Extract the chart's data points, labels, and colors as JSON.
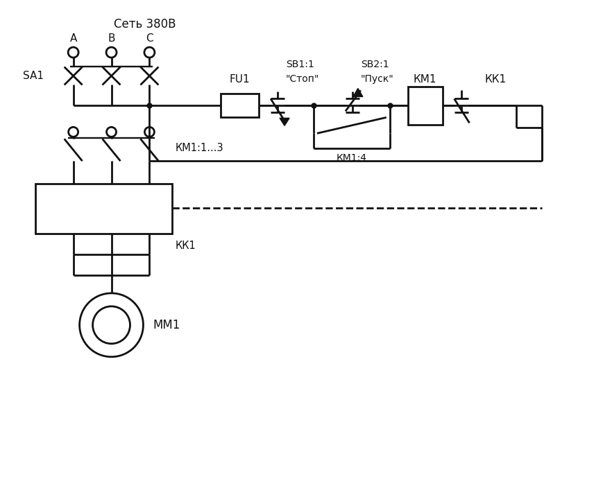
{
  "background": "#ffffff",
  "lc": "#111111",
  "lw": 2.0,
  "figsize": [
    8.69,
    7.27
  ],
  "dpi": 100,
  "labels": {
    "net": "Сеть 380В",
    "A": "А",
    "B": "В",
    "C": "С",
    "SA1": "SA1",
    "FU1": "FU1",
    "SB1_1": "SB1:1",
    "SB1_2": "\"Стоп\"",
    "SB2_1": "SB2:1",
    "SB2_2": "\"Пуск\"",
    "KM1": "КМ1",
    "KK1": "КК1",
    "KM14": "КМ1:4",
    "KM1_13": "КМ1:1...3",
    "KK1_low": "КК1",
    "MM1": "ММ1"
  }
}
